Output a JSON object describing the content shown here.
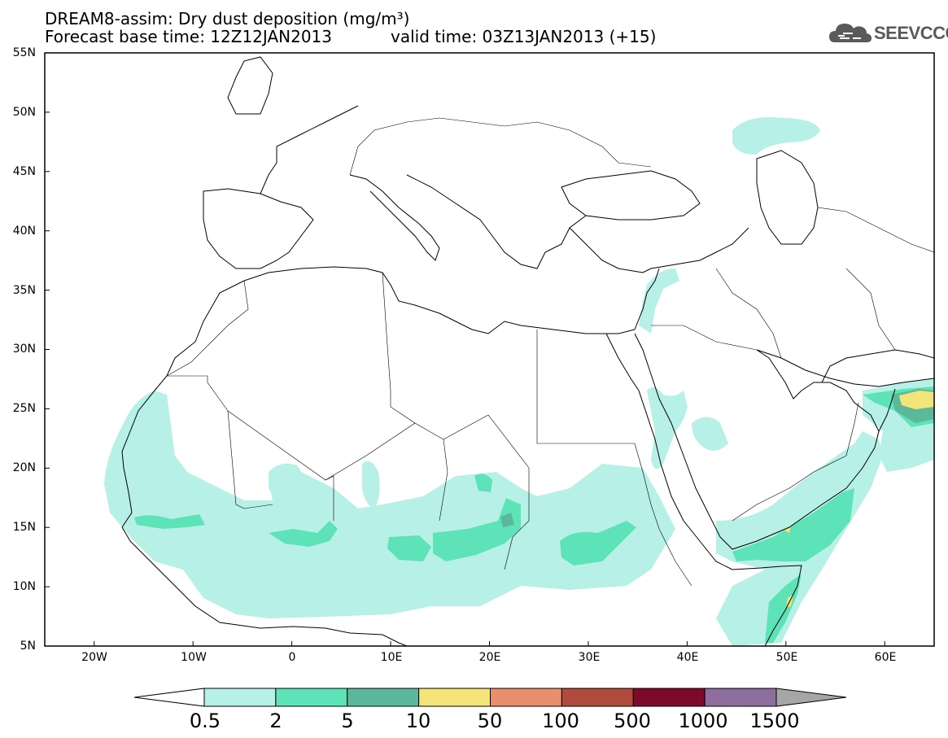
{
  "title": {
    "line1": "DREAM8-assim: Dry dust deposition (mg/m³)",
    "line2a": "Forecast base time: 12Z12JAN2013",
    "line2b": "valid time: 03Z13JAN2013 (+15)"
  },
  "logo": {
    "text": "SEEVCCC",
    "icon": "cloud-icon"
  },
  "map": {
    "projection": "lat-lon",
    "lon_range": [
      -25,
      65
    ],
    "lat_range": [
      5,
      55
    ],
    "lat_labels": [
      "55N",
      "50N",
      "45N",
      "40N",
      "35N",
      "30N",
      "25N",
      "20N",
      "15N",
      "10N",
      "5N"
    ],
    "lon_labels": [
      "20W",
      "10W",
      "0",
      "10E",
      "20E",
      "30E",
      "40E",
      "50E",
      "60E"
    ],
    "field": "dry dust deposition",
    "units": "mg/m³"
  },
  "colorbar": {
    "labels": [
      "0.5",
      "2",
      "5",
      "10",
      "50",
      "100",
      "500",
      "1000",
      "1500"
    ],
    "colors": [
      "#ffffff",
      "#b7f0e6",
      "#5ee2b8",
      "#5cb89a",
      "#f3e57a",
      "#e8906b",
      "#b04a3c",
      "#7d0a2a",
      "#8e6e9c",
      "#a6a6a6"
    ]
  }
}
